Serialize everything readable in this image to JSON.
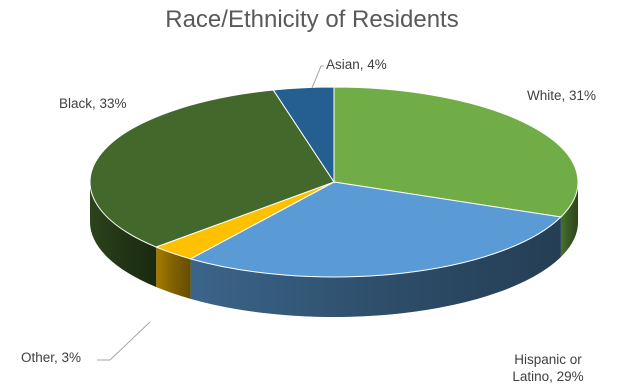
{
  "chart_data": {
    "type": "pie",
    "title": "Race/Ethnicity of Residents",
    "slices": [
      {
        "label": "White, 31%",
        "name": "White",
        "value": 31,
        "color": "#70AD47"
      },
      {
        "label": "Hispanic or Latino, 29%",
        "name": "Hispanic or Latino",
        "value": 29,
        "color": "#5B9BD5"
      },
      {
        "label": "Other, 3%",
        "name": "Other",
        "value": 3,
        "color": "#FFC000"
      },
      {
        "label": "Black, 33%",
        "name": "Black",
        "value": 33,
        "color": "#43682B"
      },
      {
        "label": "Asian, 4%",
        "name": "Asian",
        "value": 4,
        "color": "#255E91"
      }
    ],
    "style": "3d",
    "legend": "none"
  }
}
